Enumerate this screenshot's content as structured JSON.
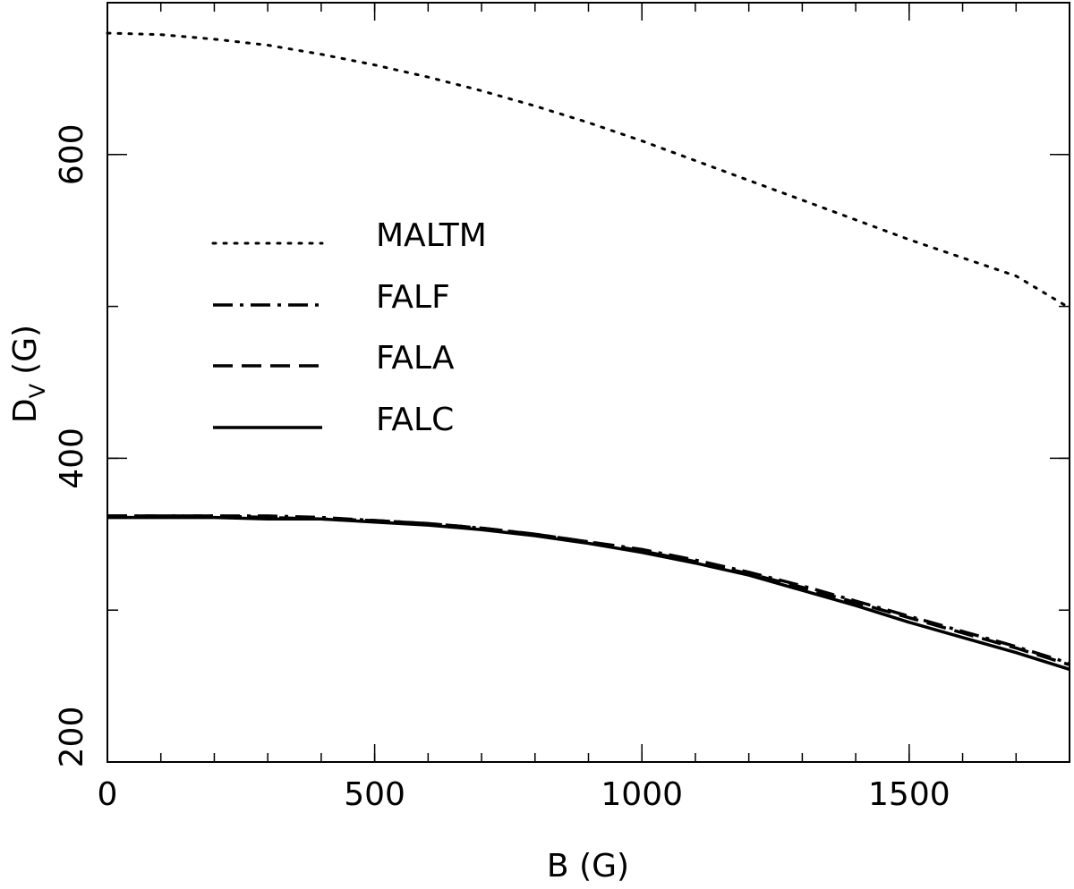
{
  "chart_data": {
    "type": "line",
    "xlabel": "B (G)",
    "ylabel": {
      "main": "D",
      "sub": "V",
      "unit": "(G)"
    },
    "xlim": [
      0,
      1800
    ],
    "ylim": [
      200,
      700
    ],
    "x_ticks": [
      0,
      500,
      1000,
      1500
    ],
    "y_ticks": [
      200,
      400,
      600
    ],
    "x_minor_step": 100,
    "y_minor_step": 100,
    "grid": false,
    "legend_position": "upper-left",
    "series": [
      {
        "name": "MALTM",
        "style": "dotted",
        "x": [
          0,
          100,
          200,
          300,
          400,
          500,
          600,
          700,
          800,
          900,
          1000,
          1100,
          1200,
          1300,
          1400,
          1500,
          1600,
          1700,
          1800
        ],
        "y": [
          680,
          679,
          676,
          672,
          666,
          659,
          651,
          642,
          632,
          621,
          609,
          596,
          583,
          570,
          557,
          544,
          532,
          520,
          499
        ]
      },
      {
        "name": "FALF",
        "style": "dash-dot",
        "x": [
          0,
          100,
          200,
          300,
          400,
          500,
          600,
          700,
          800,
          900,
          1000,
          1100,
          1200,
          1300,
          1400,
          1500,
          1600,
          1700,
          1800
        ],
        "y": [
          362,
          362,
          362,
          362,
          361,
          359,
          357,
          354,
          350,
          345,
          340,
          333,
          325,
          316,
          306,
          296,
          286,
          276,
          265
        ]
      },
      {
        "name": "FALA",
        "style": "dashed",
        "x": [
          0,
          100,
          200,
          300,
          400,
          500,
          600,
          700,
          800,
          900,
          1000,
          1100,
          1200,
          1300,
          1400,
          1500,
          1600,
          1700,
          1800
        ],
        "y": [
          362,
          362,
          362,
          361,
          360,
          359,
          357,
          354,
          350,
          345,
          339,
          332,
          324,
          315,
          305,
          295,
          285,
          275,
          264
        ]
      },
      {
        "name": "FALC",
        "style": "solid",
        "x": [
          0,
          100,
          200,
          300,
          400,
          500,
          600,
          700,
          800,
          900,
          1000,
          1100,
          1200,
          1300,
          1400,
          1500,
          1600,
          1700,
          1800
        ],
        "y": [
          361,
          361,
          361,
          360,
          360,
          358,
          356,
          353,
          349,
          344,
          338,
          331,
          323,
          313,
          303,
          292,
          282,
          272,
          261
        ]
      }
    ]
  }
}
